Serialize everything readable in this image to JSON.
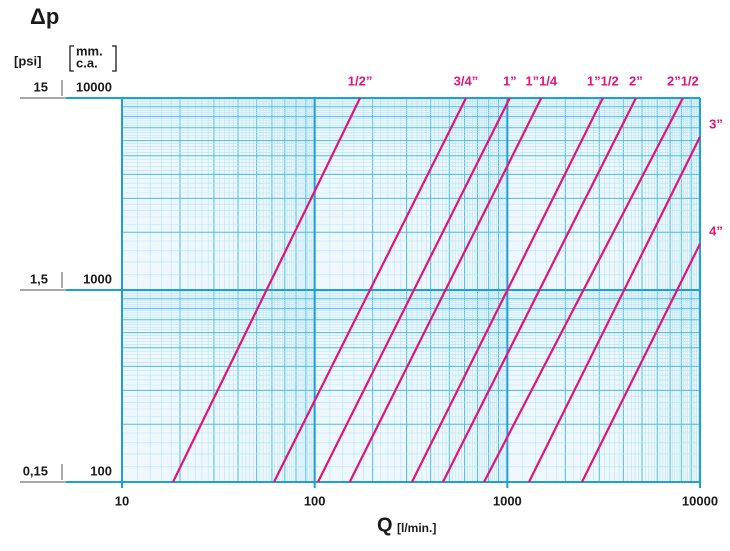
{
  "chart_data": {
    "type": "line",
    "title": "Δp",
    "y_label": "[psi]",
    "y2_label": [
      "mm.",
      "c.a."
    ],
    "x_label": "Q",
    "x_unit": "[l/min.]",
    "log_x": true,
    "log_y": true,
    "grid": true,
    "xlim": [
      10,
      10000
    ],
    "xticks": [
      10,
      100,
      1000,
      10000
    ],
    "ylim": [
      100,
      10000
    ],
    "yticks": [
      100,
      1000,
      10000
    ],
    "y2lim": [
      0.15,
      15
    ],
    "y2ticks": [
      {
        "value": 0.15,
        "label": "0,15"
      },
      {
        "value": 1.5,
        "label": "1,5"
      },
      15
    ],
    "series": [
      {
        "name": "1/2”",
        "color": "#e0157a",
        "x": [
          18.4,
          172
        ],
        "values": [
          100,
          10000
        ]
      },
      {
        "name": "3/4”",
        "color": "#e0157a",
        "x": [
          61.5,
          610
        ],
        "values": [
          100,
          10000
        ]
      },
      {
        "name": "1”",
        "color": "#e0157a",
        "x": [
          104,
          1030
        ],
        "values": [
          100,
          10000
        ]
      },
      {
        "name": "1”1/4",
        "color": "#e0157a",
        "x": [
          152,
          1500
        ],
        "values": [
          100,
          10000
        ]
      },
      {
        "name": "1”1/2",
        "color": "#e0157a",
        "x": [
          320,
          3130
        ],
        "values": [
          100,
          10000
        ]
      },
      {
        "name": "2”",
        "color": "#e0157a",
        "x": [
          463,
          4650
        ],
        "values": [
          100,
          10000
        ]
      },
      {
        "name": "2”1/2",
        "color": "#e0157a",
        "x": [
          757,
          8150
        ],
        "values": [
          100,
          10000
        ]
      },
      {
        "name": "3”",
        "color": "#e0157a",
        "x": [
          1295,
          10000
        ],
        "values": [
          100,
          6270
        ]
      },
      {
        "name": "4”",
        "color": "#e0157a",
        "x": [
          2440,
          10000
        ],
        "values": [
          100,
          1740
        ]
      }
    ]
  }
}
